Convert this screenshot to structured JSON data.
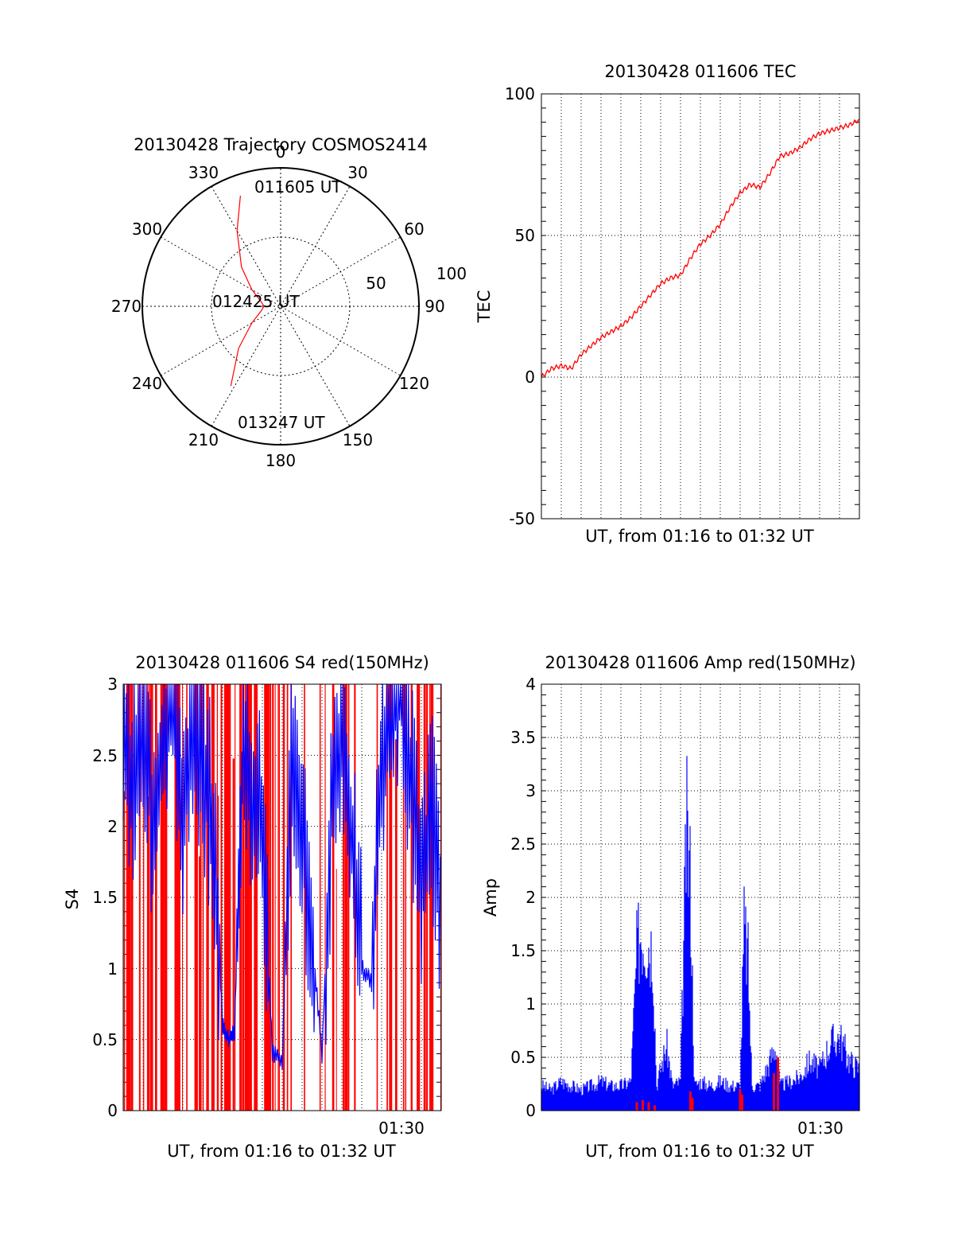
{
  "chart_data": [
    {
      "type": "polar",
      "title": "20130428 Trajectory COSMOS2414",
      "angle_labels": [
        "0",
        "30",
        "60",
        "90",
        "120",
        "150",
        "180",
        "210",
        "240",
        "270",
        "300",
        "330"
      ],
      "radial_ticks": [
        "50",
        "100"
      ],
      "track_labels": [
        "011605 UT",
        "012425 UT",
        "013247 UT"
      ],
      "series": [
        {
          "color": "#ff0000",
          "points": [
            [
              340,
              85
            ],
            [
              330,
              63
            ],
            [
              315,
              40
            ],
            [
              300,
              24
            ],
            [
              285,
              15
            ],
            [
              270,
              12
            ],
            [
              255,
              15
            ],
            [
              240,
              24
            ],
            [
              225,
              43
            ],
            [
              212,
              68
            ]
          ]
        }
      ],
      "grid": true
    },
    {
      "type": "line",
      "title": "20130428 011606 TEC",
      "xlabel": "UT, from 01:16 to 01:32 UT",
      "ylabel": "TEC",
      "xlim": [
        0,
        16
      ],
      "ylim": [
        -50,
        100
      ],
      "yticks": [
        "100",
        "50",
        "0",
        "-50"
      ],
      "grid": true,
      "series": [
        {
          "color": "#ff0000",
          "x": [
            0,
            0.5,
            1,
            1.5,
            2,
            2.5,
            3,
            3.5,
            4,
            4.5,
            5,
            5.5,
            6,
            6.5,
            7,
            7.5,
            8,
            8.5,
            9,
            9.5,
            10,
            10.5,
            11,
            11.5,
            12,
            12.5,
            13,
            13.5,
            14,
            14.5,
            15,
            15.5,
            16
          ],
          "y": [
            0,
            3,
            4,
            3,
            8,
            11,
            14,
            16,
            18,
            21,
            25,
            29,
            33,
            35,
            36,
            42,
            47,
            50,
            54,
            60,
            65,
            68,
            67,
            72,
            78,
            79,
            81,
            84,
            86,
            87,
            88,
            89,
            91
          ]
        }
      ]
    },
    {
      "type": "line",
      "title": "20130428 011606 S4 red(150MHz)",
      "xlabel": "UT, from 01:16 to 01:32 UT",
      "ylabel": "S4",
      "xlim": [
        0,
        16
      ],
      "ylim": [
        0,
        3
      ],
      "yticks": [
        "3",
        "2.5",
        "2",
        "1.5",
        "1",
        "0.5",
        "0"
      ],
      "xticks": [
        "01:30"
      ],
      "grid": true,
      "series": [
        {
          "color": "#ff0000",
          "x": [
            0,
            16
          ],
          "y": [
            0,
            3
          ]
        },
        {
          "color": "#0000ff",
          "x": [
            0,
            0.5,
            1,
            1.5,
            2,
            2.5,
            3,
            3.5,
            4,
            4.5,
            5,
            5.3,
            5.6,
            6,
            6.5,
            7,
            7.5,
            8,
            8.5,
            9,
            9.5,
            10,
            10.5,
            11,
            11.5,
            12,
            12.5,
            13,
            13.5,
            14,
            14.5,
            15,
            15.5,
            16
          ],
          "y": [
            2.7,
            2.3,
            2.8,
            2.0,
            2.6,
            2.9,
            2.1,
            2.7,
            2.5,
            2.0,
            0.6,
            0.5,
            0.55,
            2.5,
            2.3,
            2.0,
            0.4,
            0.35,
            2.6,
            2.0,
            1.2,
            0.4,
            2.2,
            2.7,
            1.9,
            1.0,
            0.9,
            2.5,
            2.9,
            3.0,
            2.3,
            1.6,
            2.1,
            1.5
          ]
        }
      ]
    },
    {
      "type": "line",
      "title": "20130428 011606 Amp red(150MHz)",
      "xlabel": "UT, from 01:16 to 01:32 UT",
      "ylabel": "Amp",
      "xlim": [
        0,
        16
      ],
      "ylim": [
        0,
        4
      ],
      "yticks": [
        "4",
        "3.5",
        "3",
        "2.5",
        "2",
        "1.5",
        "1",
        "0.5",
        "0"
      ],
      "xticks": [
        "01:30"
      ],
      "grid": true,
      "series": [
        {
          "color": "#0000ff",
          "x": [
            0,
            0.5,
            1,
            1.5,
            2,
            2.5,
            3,
            3.5,
            4,
            4.5,
            4.8,
            5,
            5.3,
            5.6,
            5.8,
            6,
            6.3,
            6.6,
            7,
            7.3,
            7.5,
            7.7,
            8,
            8.5,
            9,
            9.5,
            10,
            10.2,
            10.4,
            10.6,
            11,
            11.5,
            11.8,
            12,
            12.5,
            13,
            13.5,
            14,
            14.5,
            15,
            15.5,
            16
          ],
          "y": [
            0.3,
            0.25,
            0.35,
            0.3,
            0.25,
            0.3,
            0.35,
            0.3,
            0.3,
            0.35,
            1.9,
            2.2,
            2.1,
            2.0,
            0.3,
            0.5,
            0.8,
            0.3,
            0.35,
            3.4,
            2.8,
            0.3,
            0.35,
            0.3,
            0.35,
            0.3,
            0.3,
            2.2,
            1.8,
            0.3,
            0.3,
            0.6,
            0.8,
            0.3,
            0.35,
            0.4,
            0.6,
            0.5,
            0.8,
            0.9,
            0.6,
            0.5
          ]
        },
        {
          "color": "#ff0000",
          "x": [
            0,
            4.8,
            5.1,
            5.4,
            5.7,
            7.5,
            7.6,
            10.0,
            10.1,
            11.7,
            11.9,
            16
          ],
          "y": [
            0,
            0.08,
            0.1,
            0.08,
            0.05,
            0.18,
            0.12,
            0.2,
            0.15,
            0.35,
            0.5,
            0
          ]
        }
      ]
    }
  ]
}
